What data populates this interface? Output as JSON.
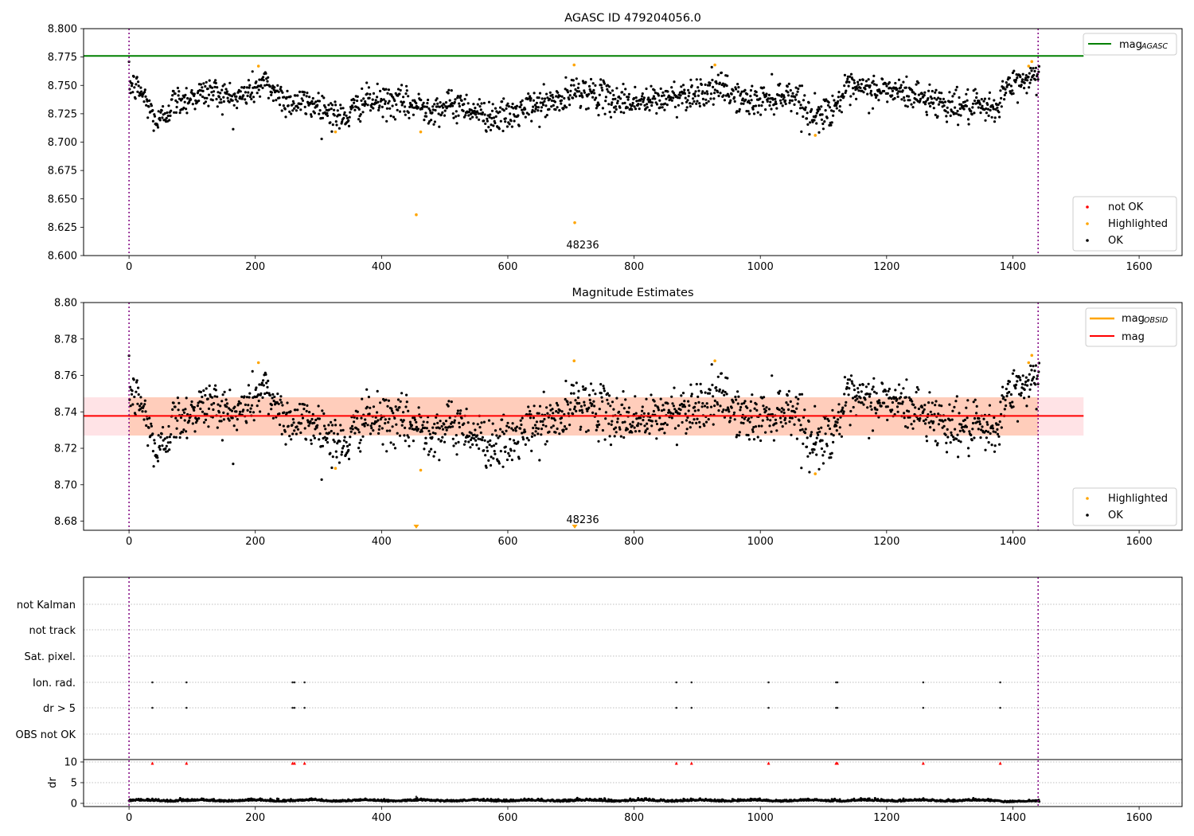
{
  "chart_data": [
    {
      "type": "scatter",
      "title": "AGASC ID 479204056.0",
      "xlim": [
        -72,
        1668
      ],
      "ylim": [
        8.6,
        8.8
      ],
      "xticks": [
        "0",
        "200",
        "400",
        "600",
        "800",
        "1000",
        "1200",
        "1400",
        "1600"
      ],
      "yticks": [
        "8.600",
        "8.625",
        "8.650",
        "8.675",
        "8.700",
        "8.725",
        "8.750",
        "8.775",
        "8.800"
      ],
      "vlines": [
        0,
        1440
      ],
      "mag_agasc": 8.776,
      "annotation": {
        "text": "48236",
        "x": 700,
        "y": 8.609
      },
      "legend_top": [
        {
          "label": "mag",
          "sub": "AGASC",
          "color": "#008000"
        }
      ],
      "legend_bottom": [
        {
          "label": "not OK",
          "color": "#ff0000"
        },
        {
          "label": "Highlighted",
          "color": "#ffa500"
        },
        {
          "label": "OK",
          "color": "#000000"
        }
      ],
      "highlighted": [
        [
          205,
          8.767
        ],
        [
          327,
          8.709
        ],
        [
          455,
          8.636
        ],
        [
          462,
          8.709
        ],
        [
          705,
          8.768
        ],
        [
          706,
          8.629
        ],
        [
          928,
          8.768
        ],
        [
          1087,
          8.706
        ],
        [
          1425,
          8.767
        ],
        [
          1430,
          8.771
        ]
      ],
      "series_anchors": [
        [
          0,
          8.752
        ],
        [
          20,
          8.744
        ],
        [
          45,
          8.716
        ],
        [
          70,
          8.735
        ],
        [
          100,
          8.74
        ],
        [
          130,
          8.745
        ],
        [
          170,
          8.738
        ],
        [
          200,
          8.748
        ],
        [
          215,
          8.752
        ],
        [
          250,
          8.736
        ],
        [
          300,
          8.733
        ],
        [
          340,
          8.72
        ],
        [
          370,
          8.736
        ],
        [
          420,
          8.735
        ],
        [
          480,
          8.73
        ],
        [
          530,
          8.733
        ],
        [
          560,
          8.724
        ],
        [
          600,
          8.722
        ],
        [
          640,
          8.732
        ],
        [
          690,
          8.737
        ],
        [
          710,
          8.747
        ],
        [
          760,
          8.738
        ],
        [
          820,
          8.735
        ],
        [
          880,
          8.742
        ],
        [
          940,
          8.747
        ],
        [
          980,
          8.735
        ],
        [
          1040,
          8.742
        ],
        [
          1060,
          8.74
        ],
        [
          1080,
          8.722
        ],
        [
          1110,
          8.728
        ],
        [
          1140,
          8.746
        ],
        [
          1200,
          8.746
        ],
        [
          1240,
          8.742
        ],
        [
          1300,
          8.733
        ],
        [
          1340,
          8.73
        ],
        [
          1370,
          8.728
        ],
        [
          1390,
          8.748
        ],
        [
          1420,
          8.755
        ],
        [
          1440,
          8.76
        ]
      ]
    },
    {
      "type": "scatter",
      "title": "Magnitude Estimates",
      "xlim": [
        -72,
        1668
      ],
      "ylim": [
        8.675,
        8.8
      ],
      "xticks": [
        "0",
        "200",
        "400",
        "600",
        "800",
        "1000",
        "1200",
        "1400",
        "1600"
      ],
      "yticks": [
        "8.68",
        "8.70",
        "8.72",
        "8.74",
        "8.76",
        "8.78",
        "8.80"
      ],
      "vlines": [
        0,
        1440
      ],
      "mag": 8.7378,
      "band": [
        8.727,
        8.748
      ],
      "annotation": {
        "text": "48236",
        "x": 700,
        "y": 8.679
      },
      "legend_top": [
        {
          "label": "mag",
          "sub": "OBSID",
          "color": "#ffa500"
        },
        {
          "label": "mag",
          "sub": "",
          "color": "#ff0000"
        }
      ],
      "legend_bottom": [
        {
          "label": "Highlighted",
          "color": "#ffa500"
        },
        {
          "label": "OK",
          "color": "#000000"
        }
      ],
      "highlighted": [
        [
          205,
          8.767
        ],
        [
          327,
          8.709
        ],
        [
          462,
          8.708
        ],
        [
          705,
          8.768
        ],
        [
          928,
          8.768
        ],
        [
          1087,
          8.706
        ],
        [
          1425,
          8.767
        ],
        [
          1430,
          8.771
        ]
      ],
      "offscale": [
        455,
        706
      ]
    },
    {
      "type": "scatter",
      "xlim": [
        -72,
        1668
      ],
      "flag_labels": [
        "not Kalman",
        "not track",
        "Sat. pixel.",
        "Ion. rad.",
        "dr > 5",
        "OBS not OK"
      ],
      "flag_x": [
        37,
        91,
        259,
        262,
        278,
        867,
        891,
        1013,
        1120,
        1122,
        1258,
        1380
      ],
      "dr_ylabel": "dr",
      "dr_yticks": [
        "0",
        "5",
        "10"
      ],
      "dr_ylim": [
        0,
        10
      ],
      "xticks": [
        "0",
        "200",
        "400",
        "600",
        "800",
        "1000",
        "1200",
        "1400",
        "1600"
      ],
      "vlines": [
        0,
        1440
      ]
    }
  ]
}
